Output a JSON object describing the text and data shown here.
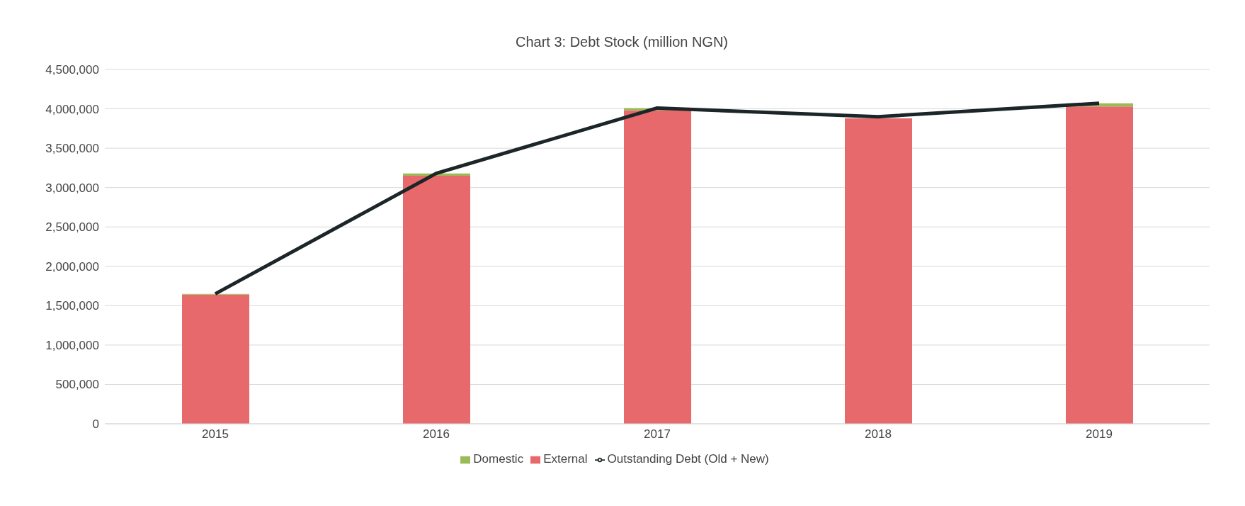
{
  "chart_data": {
    "type": "bar",
    "title": "Chart 3: Debt Stock (million NGN)",
    "categories": [
      "2015",
      "2016",
      "2017",
      "2018",
      "2019"
    ],
    "stacked": true,
    "series": [
      {
        "name": "External",
        "color": "#e8696b",
        "values": [
          1640000,
          3150000,
          3980000,
          3880000,
          4030000
        ]
      },
      {
        "name": "Domestic",
        "color": "#9bbb59",
        "values": [
          10000,
          30000,
          30000,
          null,
          40000
        ]
      },
      {
        "name": "Outstanding Debt (Old + New)",
        "type": "line",
        "color": "#1c2628",
        "values": [
          1650000,
          3180000,
          4010000,
          3900000,
          4070000
        ]
      }
    ],
    "ylim": [
      0,
      4500000
    ],
    "yticks": [
      0,
      {
        "value": 500000,
        "label": "500,000"
      },
      {
        "value": 1000000,
        "label": "1,000,000"
      },
      {
        "value": 1500000,
        "label": "1,500,000"
      },
      {
        "value": 2000000,
        "label": "2,000,000"
      },
      {
        "value": 2500000,
        "label": "2,500,000"
      },
      {
        "value": 3000000,
        "label": "3,000,000"
      },
      {
        "value": 3500000,
        "label": "3,500,000"
      },
      {
        "value": 4000000,
        "label": "4,000,000"
      },
      {
        "value": 4500000,
        "label": "4,500,000"
      }
    ],
    "grid": "y",
    "legend": "bottom",
    "marker": "none",
    "line_style": "solid"
  }
}
